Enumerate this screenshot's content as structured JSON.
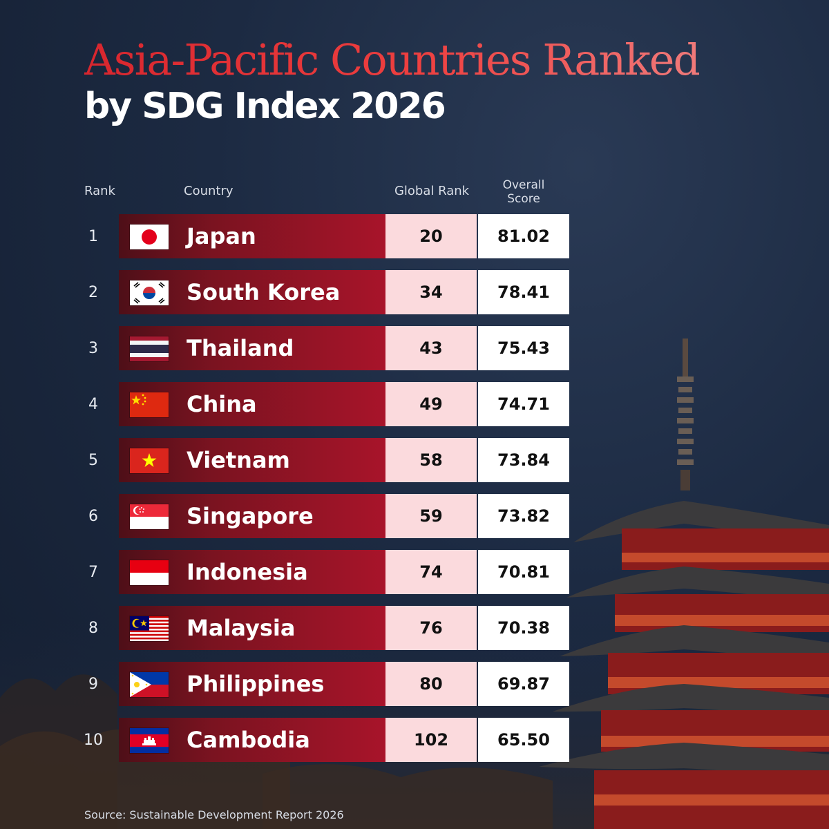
{
  "title_line1": "Asia-Pacific Countries Ranked",
  "title_line2": "by SDG Index 2026",
  "columns": {
    "rank": "Rank",
    "country": "Country",
    "global_rank": "Global Rank",
    "overall_score_line1": "Overall",
    "overall_score_line2": "Score"
  },
  "source": "Source: Sustainable Development Report 2026",
  "colors": {
    "title_red": "#e23a3a",
    "bar_red": "#a8142a",
    "global_cell": "#fbdadd",
    "score_cell": "#ffffff",
    "background": "#1c2a42"
  },
  "chart_data": {
    "type": "table",
    "title": "Asia-Pacific Countries Ranked by SDG Index 2026",
    "columns": [
      "Rank",
      "Country",
      "Global Rank",
      "Overall Score"
    ],
    "rows": [
      {
        "rank": "1",
        "country": "Japan",
        "flag": "flag-japan-icon",
        "global_rank": "20",
        "score": "81.02"
      },
      {
        "rank": "2",
        "country": "South Korea",
        "flag": "flag-south-korea-icon",
        "global_rank": "34",
        "score": "78.41"
      },
      {
        "rank": "3",
        "country": "Thailand",
        "flag": "flag-thailand-icon",
        "global_rank": "43",
        "score": "75.43"
      },
      {
        "rank": "4",
        "country": "China",
        "flag": "flag-china-icon",
        "global_rank": "49",
        "score": "74.71"
      },
      {
        "rank": "5",
        "country": "Vietnam",
        "flag": "flag-vietnam-icon",
        "global_rank": "58",
        "score": "73.84"
      },
      {
        "rank": "6",
        "country": "Singapore",
        "flag": "flag-singapore-icon",
        "global_rank": "59",
        "score": "73.82"
      },
      {
        "rank": "7",
        "country": "Indonesia",
        "flag": "flag-indonesia-icon",
        "global_rank": "74",
        "score": "70.81"
      },
      {
        "rank": "8",
        "country": "Malaysia",
        "flag": "flag-malaysia-icon",
        "global_rank": "76",
        "score": "70.38"
      },
      {
        "rank": "9",
        "country": "Philippines",
        "flag": "flag-philippines-icon",
        "global_rank": "80",
        "score": "69.87"
      },
      {
        "rank": "10",
        "country": "Cambodia",
        "flag": "flag-cambodia-icon",
        "global_rank": "102",
        "score": "65.50"
      }
    ]
  }
}
